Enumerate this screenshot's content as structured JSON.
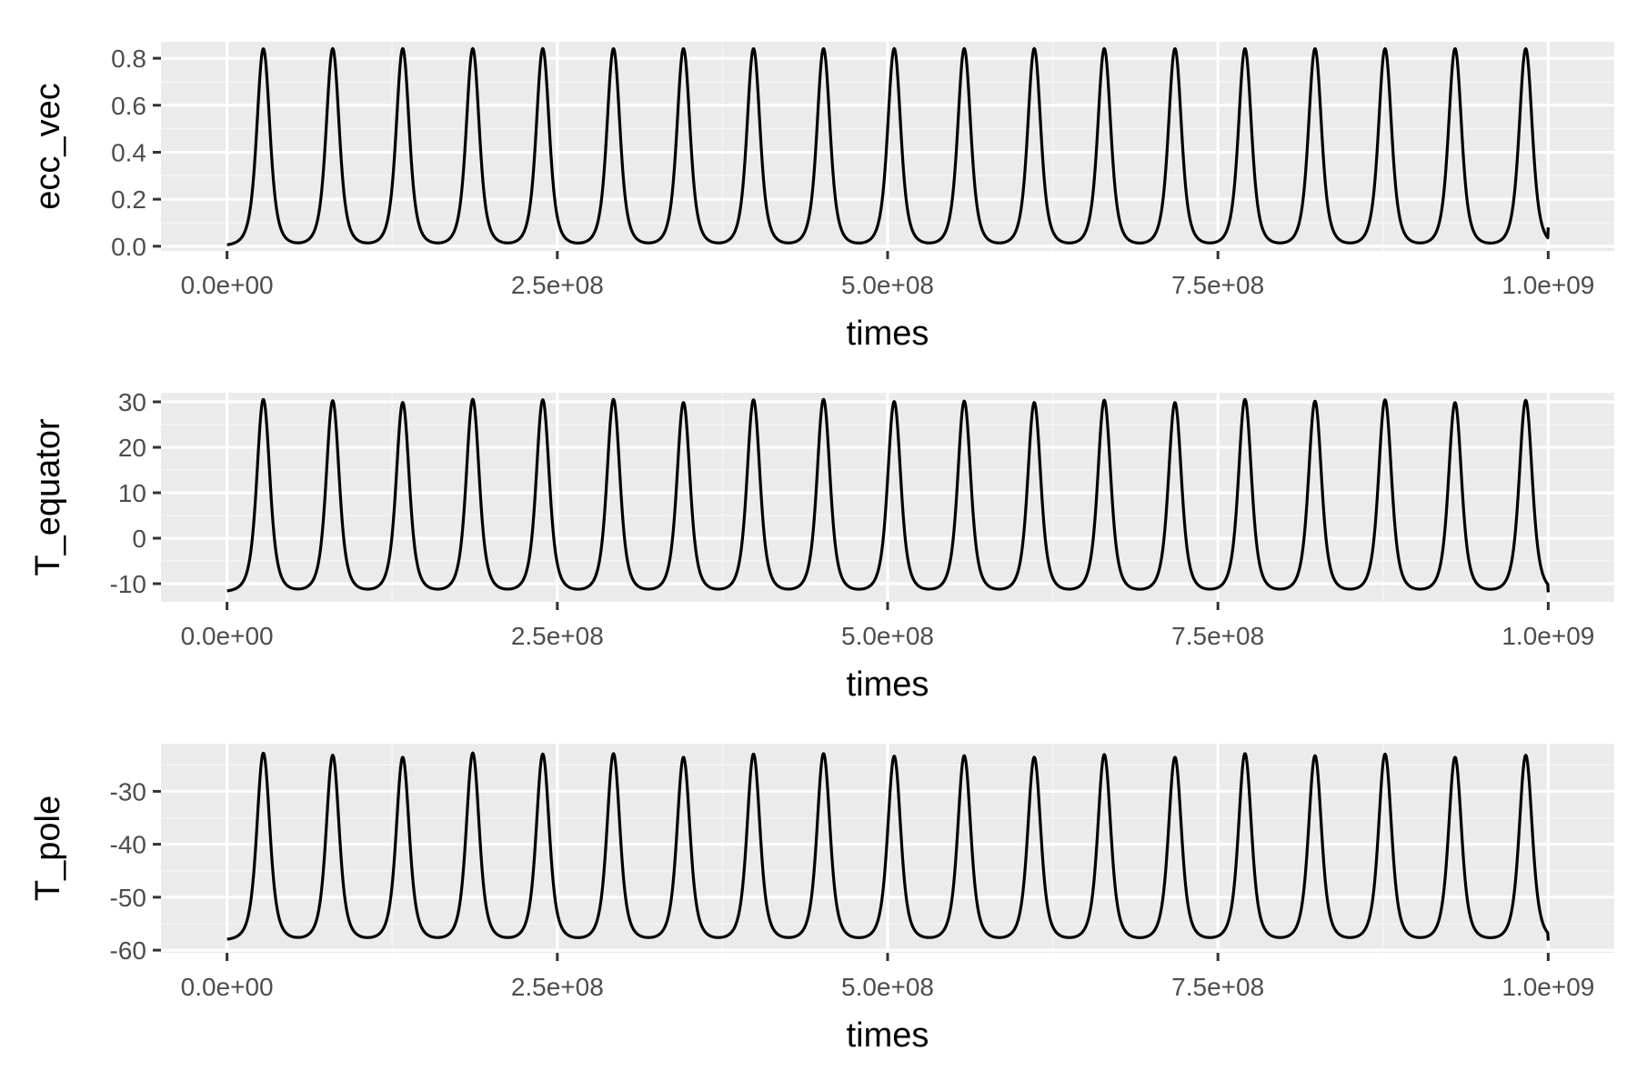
{
  "colors": {
    "panel_background": "#ebebeb",
    "grid_major": "#ffffff",
    "grid_minor": "#f5f5f5",
    "line": "#000000",
    "tick_text": "#4d4d4d",
    "title_text": "#000000"
  },
  "chart_data": [
    {
      "type": "line",
      "xlabel": "times",
      "ylabel": "ecc_vec",
      "xlim": [
        -50000000,
        1050000000
      ],
      "ylim": [
        -0.02,
        0.87
      ],
      "x_ticks": [
        0,
        250000000,
        500000000,
        750000000,
        1000000000
      ],
      "x_tick_labels": [
        "0.0e+00",
        "2.5e+08",
        "5.0e+08",
        "7.5e+08",
        "1.0e+09"
      ],
      "y_ticks": [
        0,
        0.2,
        0.4,
        0.6,
        0.8
      ],
      "y_tick_labels": [
        "0.0",
        "0.2",
        "0.4",
        "0.6",
        "0.8"
      ],
      "grid": true,
      "baseline": 0.0,
      "peak_times": [
        27500000,
        80000000,
        133000000,
        186000000,
        239000000,
        292500000,
        345500000,
        398500000,
        451500000,
        505000000,
        558000000,
        611000000,
        664000000,
        717500000,
        770500000,
        823500000,
        876500000,
        929500000,
        983000000
      ],
      "peak_values": [
        0.84,
        0.84,
        0.84,
        0.84,
        0.84,
        0.84,
        0.84,
        0.84,
        0.84,
        0.84,
        0.84,
        0.84,
        0.84,
        0.84,
        0.84,
        0.84,
        0.84,
        0.84,
        0.84
      ],
      "end_value": 0.08
    },
    {
      "type": "line",
      "xlabel": "times",
      "ylabel": "T_equator",
      "xlim": [
        -50000000,
        1050000000
      ],
      "ylim": [
        -14,
        32
      ],
      "x_ticks": [
        0,
        250000000,
        500000000,
        750000000,
        1000000000
      ],
      "x_tick_labels": [
        "0.0e+00",
        "2.5e+08",
        "5.0e+08",
        "7.5e+08",
        "1.0e+09"
      ],
      "y_ticks": [
        -10,
        0,
        10,
        20,
        30
      ],
      "y_tick_labels": [
        "-10",
        "0",
        "10",
        "20",
        "30"
      ],
      "grid": true,
      "baseline": -11.9,
      "peak_times": [
        27500000,
        80000000,
        133000000,
        186000000,
        239000000,
        292500000,
        345500000,
        398500000,
        451500000,
        505000000,
        558000000,
        611000000,
        664000000,
        717500000,
        770500000,
        823500000,
        876500000,
        929500000,
        983000000
      ],
      "peak_values": [
        30.5,
        30.2,
        29.8,
        30.5,
        30.4,
        30.5,
        29.8,
        30.4,
        30.5,
        30.0,
        30.1,
        29.8,
        30.3,
        29.8,
        30.5,
        30.1,
        30.4,
        29.8,
        30.3
      ],
      "end_value": -11.9
    },
    {
      "type": "line",
      "xlabel": "times",
      "ylabel": "T_pole",
      "xlim": [
        -50000000,
        1050000000
      ],
      "ylim": [
        -60.5,
        -21
      ],
      "x_ticks": [
        0,
        250000000,
        500000000,
        750000000,
        1000000000
      ],
      "x_tick_labels": [
        "0.0e+00",
        "2.5e+08",
        "5.0e+08",
        "7.5e+08",
        "1.0e+09"
      ],
      "y_ticks": [
        -60,
        -50,
        -40,
        -30
      ],
      "y_tick_labels": [
        "-60",
        "-50",
        "-40",
        "-30"
      ],
      "grid": true,
      "baseline": -58.2,
      "peak_times": [
        27500000,
        80000000,
        133000000,
        186000000,
        239000000,
        292500000,
        345500000,
        398500000,
        451500000,
        505000000,
        558000000,
        611000000,
        664000000,
        717500000,
        770500000,
        823500000,
        876500000,
        929500000,
        983000000
      ],
      "peak_values": [
        -22.8,
        -23.2,
        -23.6,
        -22.8,
        -23.0,
        -22.9,
        -23.6,
        -23.0,
        -22.9,
        -23.4,
        -23.3,
        -23.6,
        -23.1,
        -23.6,
        -22.9,
        -23.3,
        -23.0,
        -23.6,
        -23.2
      ],
      "end_value": -58.2
    }
  ]
}
